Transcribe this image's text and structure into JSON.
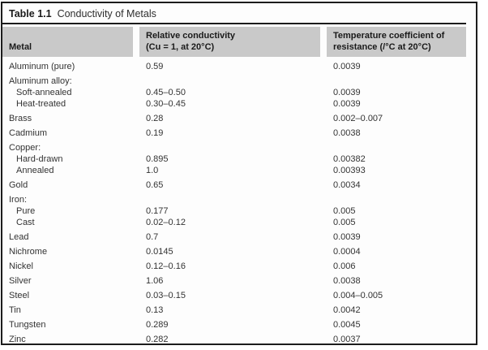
{
  "table": {
    "title_label": "Table 1.1",
    "title_text": "Conductivity of Metals",
    "columns": [
      {
        "line1": "Metal",
        "line2": ""
      },
      {
        "line1": "Relative conductivity",
        "line2": "(Cu = 1, at 20°C)"
      },
      {
        "line1": "Temperature coefficient of",
        "line2": "resistance (/°C at 20°C)"
      }
    ],
    "rows": [
      {
        "metal": "Aluminum (pure)",
        "indent": false,
        "conductivity": "0.59",
        "coefficient": "0.0039"
      },
      {
        "metal": "Aluminum alloy:",
        "indent": false,
        "conductivity": "",
        "coefficient": ""
      },
      {
        "metal": "Soft-annealed",
        "indent": true,
        "conductivity": "0.45–0.50",
        "coefficient": "0.0039"
      },
      {
        "metal": "Heat-treated",
        "indent": true,
        "conductivity": "0.30–0.45",
        "coefficient": "0.0039"
      },
      {
        "metal": "Brass",
        "indent": false,
        "conductivity": "0.28",
        "coefficient": "0.002–0.007"
      },
      {
        "metal": "Cadmium",
        "indent": false,
        "conductivity": "0.19",
        "coefficient": "0.0038"
      },
      {
        "metal": "Copper:",
        "indent": false,
        "conductivity": "",
        "coefficient": ""
      },
      {
        "metal": "Hard-drawn",
        "indent": true,
        "conductivity": "0.895",
        "coefficient": "0.00382"
      },
      {
        "metal": "Annealed",
        "indent": true,
        "conductivity": "1.0",
        "coefficient": "0.00393"
      },
      {
        "metal": "Gold",
        "indent": false,
        "conductivity": "0.65",
        "coefficient": "0.0034"
      },
      {
        "metal": "Iron:",
        "indent": false,
        "conductivity": "",
        "coefficient": ""
      },
      {
        "metal": "Pure",
        "indent": true,
        "conductivity": "0.177",
        "coefficient": "0.005"
      },
      {
        "metal": "Cast",
        "indent": true,
        "conductivity": "0.02–0.12",
        "coefficient": "0.005"
      },
      {
        "metal": "Lead",
        "indent": false,
        "conductivity": "0.7",
        "coefficient": "0.0039"
      },
      {
        "metal": "Nichrome",
        "indent": false,
        "conductivity": "0.0145",
        "coefficient": "0.0004"
      },
      {
        "metal": "Nickel",
        "indent": false,
        "conductivity": "0.12–0.16",
        "coefficient": "0.006"
      },
      {
        "metal": "Silver",
        "indent": false,
        "conductivity": "1.06",
        "coefficient": "0.0038"
      },
      {
        "metal": "Steel",
        "indent": false,
        "conductivity": "0.03–0.15",
        "coefficient": "0.004–0.005"
      },
      {
        "metal": "Tin",
        "indent": false,
        "conductivity": "0.13",
        "coefficient": "0.0042"
      },
      {
        "metal": "Tungsten",
        "indent": false,
        "conductivity": "0.289",
        "coefficient": "0.0045"
      },
      {
        "metal": "Zinc",
        "indent": false,
        "conductivity": "0.282",
        "coefficient": "0.0037"
      }
    ],
    "colors": {
      "frame_border": "#1c1c1c",
      "header_bg": "#c9c9c9",
      "body_text": "#333333"
    }
  }
}
